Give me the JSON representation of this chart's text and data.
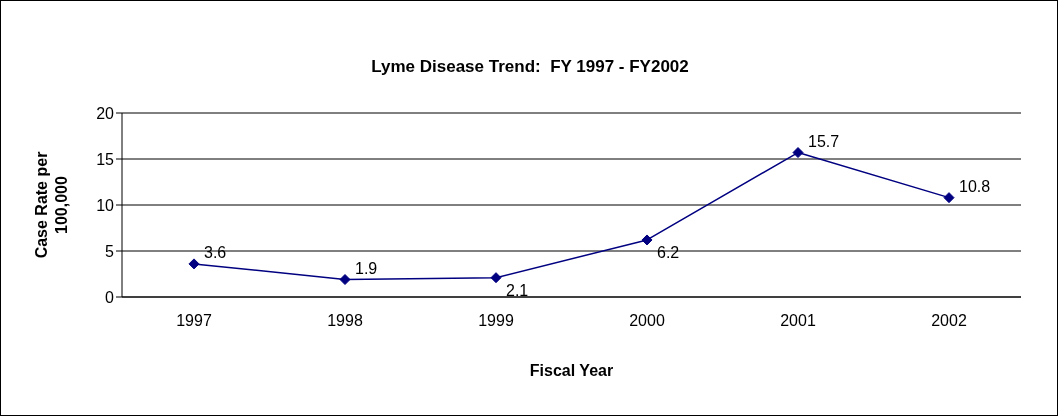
{
  "chart_data": {
    "type": "line",
    "title": "Lyme Disease Trend:  FY 1997 - FY2002",
    "xlabel": "Fiscal Year",
    "ylabel": "Case Rate per 100,000",
    "categories": [
      "1997",
      "1998",
      "1999",
      "2000",
      "2001",
      "2002"
    ],
    "series": [
      {
        "color": "#000080",
        "values": [
          3.6,
          1.9,
          2.1,
          6.2,
          15.7,
          10.8
        ]
      }
    ],
    "ylim": [
      0,
      20
    ],
    "yticks": [
      0,
      5,
      10,
      15,
      20
    ],
    "grid": "y",
    "marker": "diamond",
    "data_labels": true
  }
}
